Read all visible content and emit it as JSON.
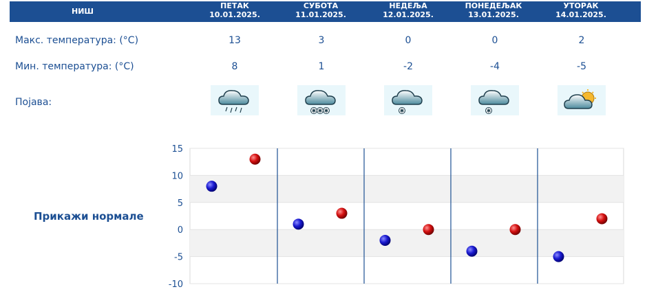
{
  "header": {
    "city": "НИШ"
  },
  "days": [
    {
      "name": "ПЕТАК",
      "date": "10.01.2025.",
      "max": "13",
      "min": "8",
      "icon": "rain-icon"
    },
    {
      "name": "СУБОТА",
      "date": "11.01.2025.",
      "max": "3",
      "min": "1",
      "icon": "snow-icon"
    },
    {
      "name": "НЕДЕЉА",
      "date": "12.01.2025.",
      "max": "0",
      "min": "-2",
      "icon": "light-snow-icon"
    },
    {
      "name": "ПОНЕДЕЉАК",
      "date": "13.01.2025.",
      "max": "0",
      "min": "-4",
      "icon": "light-snow-icon"
    },
    {
      "name": "УТОРАК",
      "date": "14.01.2025.",
      "max": "2",
      "min": "-5",
      "icon": "partly-sunny-icon"
    }
  ],
  "labels": {
    "max": "Макс. температура: (°C)",
    "min": "Мин. температура: (°C)",
    "phenomenon": "Појава:"
  },
  "normals_link": "Прикажи нормале",
  "colors": {
    "header": "#1c4f93",
    "min_dot": "#0c0cb8",
    "max_dot": "#cc0a0a",
    "text": "#1c4f93"
  },
  "chart_data": {
    "type": "scatter",
    "categories": [
      "10.01.2025.",
      "11.01.2025.",
      "12.01.2025.",
      "13.01.2025.",
      "14.01.2025."
    ],
    "series": [
      {
        "values": [
          8,
          1,
          -2,
          -4,
          -5
        ],
        "color": "#0c0cb8"
      },
      {
        "values": [
          13,
          3,
          0,
          0,
          2
        ],
        "color": "#cc0a0a"
      }
    ],
    "yticks": [
      "15",
      "10",
      "5",
      "0",
      "-5",
      "-10"
    ],
    "ylim": [
      -10,
      15
    ],
    "grid": true
  }
}
